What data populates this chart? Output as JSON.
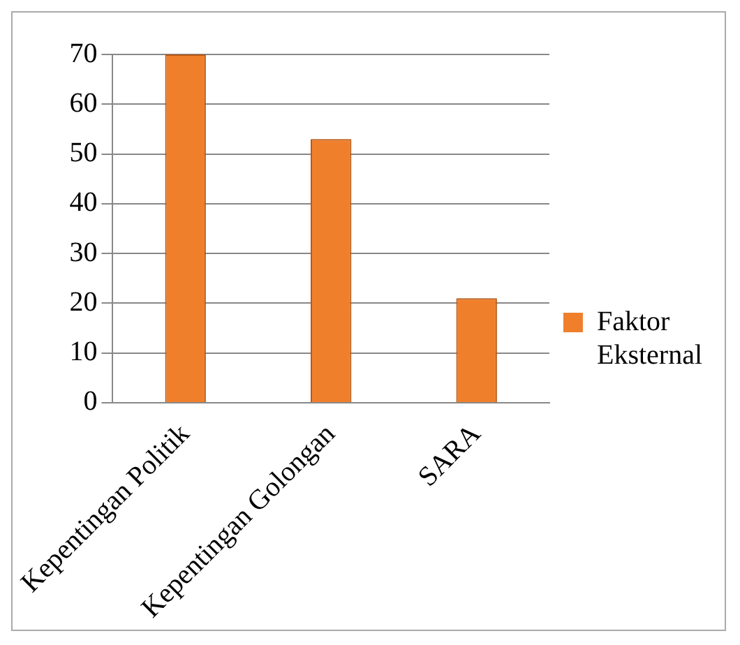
{
  "chart_data": {
    "type": "bar",
    "categories": [
      "Kepentingan Politik",
      "Kepentingan Golongan",
      "SARA"
    ],
    "series": [
      {
        "name": "Faktor Eksternal",
        "color": "#f07f2c",
        "values": [
          70,
          53,
          21
        ]
      }
    ],
    "ylim": [
      0,
      70
    ],
    "yticks": [
      0,
      10,
      20,
      30,
      40,
      50,
      60,
      70
    ],
    "grid": "y",
    "legend": "right"
  }
}
